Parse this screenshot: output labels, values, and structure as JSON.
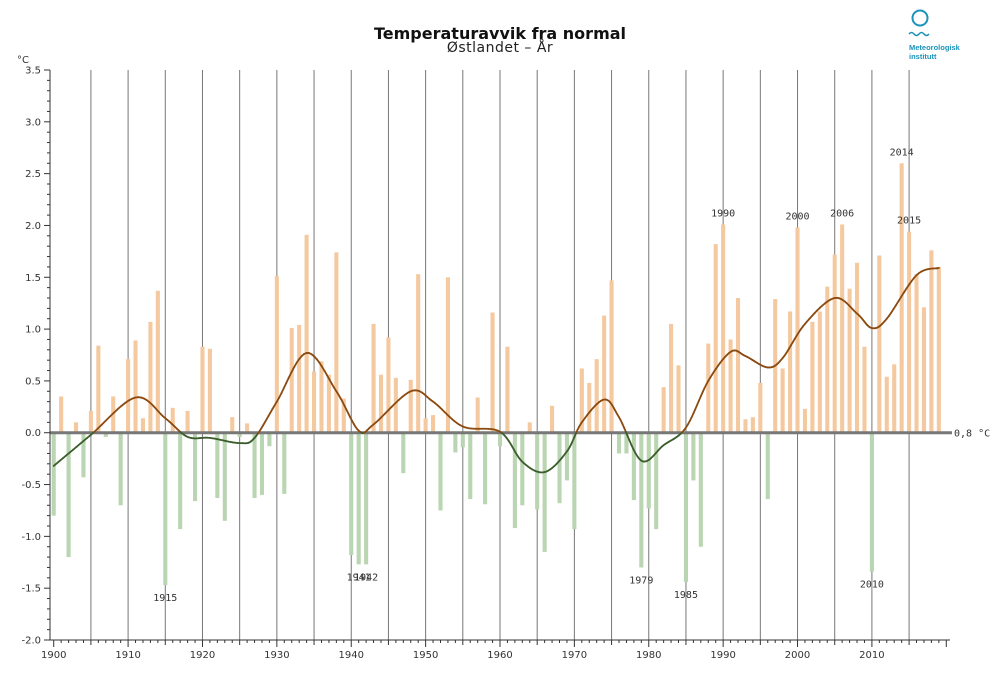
{
  "chart_data": {
    "type": "bar",
    "title": "Temperaturavvik fra normal",
    "subtitle": "Østlandet – År",
    "ylabel": "°C",
    "ylim": [
      -2.0,
      3.5
    ],
    "yticks": [
      -2.0,
      -1.5,
      -1.0,
      -0.5,
      0.0,
      0.5,
      1.0,
      1.5,
      2.0,
      2.5,
      3.0,
      3.5
    ],
    "ytick_labels": [
      "-2.0",
      "-1.5",
      "-1.0",
      "-0.5",
      "0.0",
      "0.5",
      "1.0",
      "1.5",
      "2.0",
      "2.5",
      "3.0",
      "3.5"
    ],
    "xlim": [
      1899.5,
      2020.5
    ],
    "xticks": [
      1900,
      1910,
      1920,
      1930,
      1940,
      1950,
      1960,
      1970,
      1980,
      1990,
      2000,
      2010
    ],
    "xtick_labels": [
      "1900",
      "1910",
      "1920",
      "1930",
      "1940",
      "1950",
      "1960",
      "1970",
      "1980",
      "1990",
      "2000",
      "2010"
    ],
    "baseline_label": "0,8 °C",
    "years": [
      1900,
      1901,
      1902,
      1903,
      1904,
      1905,
      1906,
      1907,
      1908,
      1909,
      1910,
      1911,
      1912,
      1913,
      1914,
      1915,
      1916,
      1917,
      1918,
      1919,
      1920,
      1921,
      1922,
      1923,
      1924,
      1925,
      1926,
      1927,
      1928,
      1929,
      1930,
      1931,
      1932,
      1933,
      1934,
      1935,
      1936,
      1937,
      1938,
      1939,
      1940,
      1941,
      1942,
      1943,
      1944,
      1945,
      1946,
      1947,
      1948,
      1949,
      1950,
      1951,
      1952,
      1953,
      1954,
      1955,
      1956,
      1957,
      1958,
      1959,
      1960,
      1961,
      1962,
      1963,
      1964,
      1965,
      1966,
      1967,
      1968,
      1969,
      1970,
      1971,
      1972,
      1973,
      1974,
      1975,
      1976,
      1977,
      1978,
      1979,
      1980,
      1981,
      1982,
      1983,
      1984,
      1985,
      1986,
      1987,
      1988,
      1989,
      1990,
      1991,
      1992,
      1993,
      1994,
      1995,
      1996,
      1997,
      1998,
      1999,
      2000,
      2001,
      2002,
      2003,
      2004,
      2005,
      2006,
      2007,
      2008,
      2009,
      2010,
      2011,
      2012,
      2013,
      2014,
      2015,
      2016,
      2017,
      2018,
      2019
    ],
    "values": [
      -0.8,
      0.35,
      -1.2,
      0.1,
      -0.43,
      0.21,
      0.84,
      -0.04,
      0.35,
      -0.7,
      0.71,
      0.89,
      0.14,
      1.07,
      1.37,
      -1.47,
      0.24,
      -0.93,
      0.21,
      -0.66,
      0.83,
      0.81,
      -0.63,
      -0.85,
      0.15,
      -0.04,
      0.09,
      -0.63,
      -0.6,
      -0.13,
      1.51,
      -0.59,
      1.01,
      1.04,
      1.91,
      0.59,
      0.69,
      0.56,
      1.74,
      0.33,
      -1.18,
      -1.27,
      -1.27,
      1.05,
      0.56,
      0.92,
      0.53,
      -0.39,
      0.51,
      1.53,
      0.14,
      0.17,
      -0.75,
      1.5,
      -0.19,
      -0.14,
      -0.64,
      0.34,
      -0.69,
      1.16,
      -0.13,
      0.83,
      -0.92,
      -0.7,
      0.1,
      -0.74,
      -1.15,
      0.26,
      -0.68,
      -0.46,
      -0.93,
      0.62,
      0.48,
      0.71,
      1.13,
      1.47,
      -0.2,
      -0.2,
      -0.65,
      -1.3,
      -0.73,
      -0.93,
      0.44,
      1.05,
      0.65,
      -1.44,
      -0.46,
      -1.1,
      0.86,
      1.82,
      2.01,
      0.9,
      1.3,
      0.13,
      0.15,
      0.48,
      -0.64,
      1.29,
      0.62,
      1.17,
      1.98,
      0.23,
      1.07,
      1.17,
      1.41,
      1.72,
      2.01,
      1.39,
      1.64,
      0.83,
      -1.34,
      1.71,
      0.54,
      0.66,
      2.6,
      1.94,
      1.53,
      1.21,
      1.76,
      1.6
    ],
    "smooth_years": [
      1900,
      1905,
      1911,
      1915,
      1918,
      1921,
      1925,
      1927,
      1930,
      1934,
      1938,
      1941,
      1943,
      1948,
      1951,
      1955,
      1960,
      1963,
      1966,
      1969,
      1971,
      1974,
      1976,
      1979,
      1982,
      1985,
      1988,
      1991,
      1993,
      1996,
      1998,
      2001,
      2005,
      2008,
      2010,
      2012,
      2016,
      2019
    ],
    "smooth_values": [
      -0.32,
      -0.02,
      0.34,
      0.14,
      -0.04,
      -0.05,
      -0.1,
      -0.05,
      0.3,
      0.77,
      0.4,
      0.02,
      0.08,
      0.4,
      0.3,
      0.06,
      0.01,
      -0.28,
      -0.38,
      -0.18,
      0.1,
      0.32,
      0.15,
      -0.27,
      -0.12,
      0.05,
      0.5,
      0.78,
      0.74,
      0.63,
      0.72,
      1.05,
      1.3,
      1.15,
      1.01,
      1.1,
      1.52,
      1.59
    ],
    "annotations": [
      {
        "year": 1915,
        "label": "1915"
      },
      {
        "year": 1941,
        "label": "1941"
      },
      {
        "year": 1942,
        "label": "1942"
      },
      {
        "year": 1979,
        "label": "1979"
      },
      {
        "year": 1985,
        "label": "1985"
      },
      {
        "year": 1990,
        "label": "1990"
      },
      {
        "year": 2000,
        "label": "2000"
      },
      {
        "year": 2006,
        "label": "2006"
      },
      {
        "year": 2010,
        "label": "2010"
      },
      {
        "year": 2014,
        "label": "2014"
      },
      {
        "year": 2015,
        "label": "2015"
      }
    ],
    "colors": {
      "positive": "#f5c9a0",
      "negative": "#b9d5b1",
      "smooth_positive": "#8b4a10",
      "smooth_negative": "#3c5e2c",
      "grid": "#777777",
      "zero_line": "#777777"
    }
  },
  "logo": {
    "line1": "Meteorologisk",
    "line2": "institutt",
    "color": "#1b93b9"
  }
}
